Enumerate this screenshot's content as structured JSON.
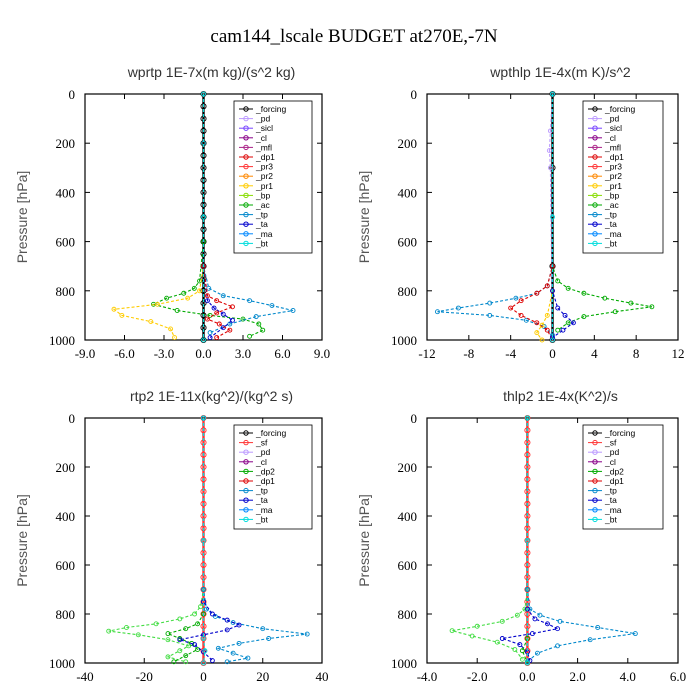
{
  "figure_title": "cam144_lscale  BUDGET at270E,-7N",
  "y_axis_label": "Pressure  [hPa]",
  "chart_data": [
    {
      "type": "line",
      "title": "wprtp   1E-7x(m kg)/(s^2 kg)",
      "ylabel": "Pressure  [hPa]",
      "xlim": [
        -9,
        9
      ],
      "ylim": [
        1000,
        0
      ],
      "xticks": [
        -9,
        -6,
        -3,
        0,
        3,
        6,
        9
      ],
      "xtick_labels": [
        "-9.0",
        "-6.0",
        "-3.0",
        "0.0",
        "3.0",
        "6.0",
        "9.0"
      ],
      "yticks": [
        0,
        200,
        400,
        600,
        800,
        1000
      ],
      "ytick_labels": [
        "0",
        "200",
        "400",
        "600",
        "800",
        "1000"
      ],
      "legend": [
        "_forcing",
        "_pd",
        "_sicl",
        "_cl",
        "_mfl",
        "_dp1",
        "_pr3",
        "_pr2",
        "_pr1",
        "_bp",
        "_ac",
        "_tp",
        "_ta",
        "_ma",
        "_bt"
      ],
      "series": [
        {
          "name": "_forcing",
          "color": "#000000",
          "x": [
            0,
            0,
            0,
            0,
            0,
            0,
            0,
            0,
            0,
            0,
            0,
            0,
            0,
            0,
            0,
            0,
            0,
            0,
            0,
            0,
            0
          ],
          "y": [
            0,
            50,
            100,
            150,
            200,
            250,
            300,
            350,
            400,
            450,
            500,
            550,
            600,
            650,
            700,
            750,
            800,
            850,
            900,
            950,
            1000
          ]
        },
        {
          "name": "_ac",
          "color": "#00aa00",
          "x": [
            0,
            0,
            0,
            -0.3,
            -0.7,
            -1.5,
            -2.8,
            -3.8,
            -2.0,
            0.5,
            3.0,
            4.2,
            4.5,
            3.5
          ],
          "y": [
            0,
            200,
            600,
            760,
            790,
            810,
            830,
            855,
            880,
            900,
            915,
            935,
            960,
            985
          ]
        },
        {
          "name": "_pr1",
          "color": "#ffcc00",
          "x": [
            0,
            0,
            0,
            -0.3,
            -1.2,
            -3.5,
            -6.8,
            -6.2,
            -4.0,
            -2.5,
            -2.2
          ],
          "y": [
            0,
            200,
            700,
            800,
            830,
            855,
            875,
            900,
            925,
            955,
            990
          ]
        },
        {
          "name": "_tp",
          "color": "#0088cc",
          "x": [
            0,
            0,
            0,
            0.4,
            1.5,
            3.5,
            5.2,
            6.8,
            4.0,
            2.0,
            0.5
          ],
          "y": [
            0,
            200,
            700,
            790,
            820,
            840,
            860,
            880,
            905,
            935,
            970
          ]
        },
        {
          "name": "_ta",
          "color": "#0000cc",
          "x": [
            0,
            0,
            0.3,
            0.8,
            1.5,
            2.2,
            1.5,
            0.5
          ],
          "y": [
            0,
            700,
            840,
            870,
            895,
            920,
            950,
            990
          ]
        },
        {
          "name": "_dp1",
          "color": "#dd0000",
          "x": [
            0,
            0,
            0.3,
            1.0,
            2.2,
            1.0,
            0.3,
            1.2,
            2.0,
            1.0
          ],
          "y": [
            0,
            700,
            820,
            840,
            865,
            890,
            915,
            935,
            960,
            990
          ]
        },
        {
          "name": "_bt",
          "color": "#00dddd",
          "x": [
            0,
            0,
            0
          ],
          "y": [
            0,
            500,
            1000
          ]
        }
      ]
    },
    {
      "type": "line",
      "title": "wpthlp   1E-4x(m K)/s^2",
      "ylabel": "Pressure  [hPa]",
      "xlim": [
        -12,
        12
      ],
      "ylim": [
        1000,
        0
      ],
      "xticks": [
        -12,
        -8,
        -4,
        0,
        4,
        8,
        12
      ],
      "xtick_labels": [
        "-12",
        "-8",
        "-4",
        "0",
        "4",
        "8",
        "12"
      ],
      "yticks": [
        0,
        200,
        400,
        600,
        800,
        1000
      ],
      "ytick_labels": [
        "0",
        "200",
        "400",
        "600",
        "800",
        "1000"
      ],
      "legend": [
        "_forcing",
        "_pd",
        "_sicl",
        "_cl",
        "_mfl",
        "_dp1",
        "_pr3",
        "_pr2",
        "_pr1",
        "_bp",
        "_ac",
        "_tp",
        "_ta",
        "_ma",
        "_bt"
      ],
      "series": [
        {
          "name": "_forcing",
          "color": "#000000",
          "x": [
            0,
            0,
            0,
            0
          ],
          "y": [
            0,
            300,
            700,
            1000
          ]
        },
        {
          "name": "_pd",
          "color": "#bb99ff",
          "x": [
            0,
            -0.2,
            -0.3,
            -0.2,
            0
          ],
          "y": [
            0,
            150,
            230,
            300,
            1000
          ]
        },
        {
          "name": "_ac",
          "color": "#00aa00",
          "x": [
            0,
            0,
            0.5,
            1.5,
            3.0,
            5.0,
            7.5,
            9.5,
            6.0,
            3.0,
            1.5,
            0.5
          ],
          "y": [
            0,
            700,
            760,
            790,
            810,
            830,
            850,
            865,
            885,
            905,
            930,
            960
          ]
        },
        {
          "name": "_tp",
          "color": "#0088cc",
          "x": [
            0,
            0,
            -0.5,
            -1.5,
            -3.5,
            -6.0,
            -9.0,
            -11.0,
            -6.0,
            -2.5,
            -0.8,
            0
          ],
          "y": [
            0,
            700,
            780,
            810,
            830,
            850,
            870,
            885,
            900,
            920,
            945,
            980
          ]
        },
        {
          "name": "_dp1",
          "color": "#dd0000",
          "x": [
            0,
            0,
            -0.5,
            -1.5,
            -3.0,
            -4.0,
            -3.0,
            -1.5,
            -0.5,
            0
          ],
          "y": [
            0,
            700,
            780,
            810,
            840,
            870,
            900,
            930,
            960,
            1000
          ]
        },
        {
          "name": "_pr1",
          "color": "#ffcc00",
          "x": [
            0,
            0,
            -0.5,
            -1.0,
            -1.5,
            -1.0
          ],
          "y": [
            0,
            800,
            900,
            940,
            970,
            1000
          ]
        },
        {
          "name": "_ta",
          "color": "#0000cc",
          "x": [
            0,
            0,
            0.5,
            1.2,
            2.0,
            1.0,
            0
          ],
          "y": [
            0,
            800,
            870,
            900,
            930,
            960,
            990
          ]
        },
        {
          "name": "_bt",
          "color": "#00dddd",
          "x": [
            0,
            0,
            0
          ],
          "y": [
            0,
            500,
            1000
          ]
        }
      ]
    },
    {
      "type": "line",
      "title": "rtp2   1E-11x(kg^2)/(kg^2 s)",
      "ylabel": "Pressure  [hPa]",
      "xlim": [
        -40,
        40
      ],
      "ylim": [
        1000,
        0
      ],
      "xticks": [
        -40,
        -20,
        0,
        20,
        40
      ],
      "xtick_labels": [
        "-40",
        "-20",
        "0",
        "20",
        "40"
      ],
      "yticks": [
        0,
        200,
        400,
        600,
        800,
        1000
      ],
      "ytick_labels": [
        "0",
        "200",
        "400",
        "600",
        "800",
        "1000"
      ],
      "legend": [
        "_forcing",
        "_sf",
        "_pd",
        "_cl",
        "_dp2",
        "_dp1",
        "_tp",
        "_ta",
        "_ma",
        "_bt"
      ],
      "series": [
        {
          "name": "_forcing",
          "color": "#ff3333",
          "x": [
            0,
            0,
            0,
            0,
            0,
            0,
            0,
            0,
            0,
            0,
            0,
            0,
            0,
            0,
            0,
            0,
            0,
            0,
            0,
            0,
            0
          ],
          "y": [
            0,
            50,
            100,
            150,
            200,
            250,
            300,
            350,
            400,
            450,
            500,
            550,
            600,
            650,
            700,
            750,
            800,
            850,
            900,
            950,
            1000
          ]
        },
        {
          "name": "_dp1",
          "color": "#44dd44",
          "x": [
            0,
            0,
            -1,
            -3,
            -8,
            -16,
            -26,
            -32,
            -22,
            -12,
            -5,
            -8,
            -12,
            -6
          ],
          "y": [
            0,
            700,
            770,
            800,
            820,
            840,
            855,
            870,
            885,
            905,
            930,
            950,
            975,
            995
          ]
        },
        {
          "name": "_dp2",
          "color": "#00aa00",
          "x": [
            0,
            0,
            -2,
            -6,
            -12,
            -8,
            -4,
            -2,
            -6,
            -10
          ],
          "y": [
            0,
            800,
            840,
            860,
            880,
            900,
            920,
            945,
            970,
            995
          ]
        },
        {
          "name": "_tp",
          "color": "#0088cc",
          "x": [
            0,
            0,
            1,
            4,
            10,
            20,
            35,
            22,
            12,
            5,
            10,
            15,
            8
          ],
          "y": [
            0,
            700,
            780,
            810,
            835,
            860,
            882,
            900,
            920,
            940,
            960,
            980,
            995
          ]
        },
        {
          "name": "_ta",
          "color": "#0000cc",
          "x": [
            0,
            0,
            3,
            8,
            12,
            8,
            0,
            -8,
            -3,
            0,
            3
          ],
          "y": [
            0,
            750,
            800,
            825,
            845,
            865,
            885,
            905,
            925,
            955,
            990
          ]
        },
        {
          "name": "_bt",
          "color": "#00dddd",
          "x": [
            0,
            0,
            0,
            0.5,
            0
          ],
          "y": [
            0,
            500,
            900,
            950,
            1000
          ]
        }
      ]
    },
    {
      "type": "line",
      "title": "thlp2   1E-4x(K^2)/s",
      "ylabel": "Pressure  [hPa]",
      "xlim": [
        -4,
        6
      ],
      "ylim": [
        1000,
        0
      ],
      "xticks": [
        -4,
        -2,
        0,
        2,
        4,
        6
      ],
      "xtick_labels": [
        "-4.0",
        "-2.0",
        "0.0",
        "2.0",
        "4.0",
        "6.0"
      ],
      "yticks": [
        0,
        200,
        400,
        600,
        800,
        1000
      ],
      "ytick_labels": [
        "0",
        "200",
        "400",
        "600",
        "800",
        "1000"
      ],
      "legend": [
        "_forcing",
        "_sf",
        "_pd",
        "_cl",
        "_dp2",
        "_dp1",
        "_tp",
        "_ta",
        "_ma",
        "_bt"
      ],
      "series": [
        {
          "name": "_forcing",
          "color": "#ff3333",
          "x": [
            0,
            0,
            0,
            0,
            0,
            0,
            0,
            0,
            0,
            0,
            0,
            0,
            0,
            0,
            0,
            0,
            0,
            0,
            0,
            0,
            0
          ],
          "y": [
            0,
            50,
            100,
            150,
            200,
            250,
            300,
            350,
            400,
            450,
            500,
            550,
            600,
            650,
            700,
            750,
            800,
            850,
            900,
            950,
            1000
          ]
        },
        {
          "name": "_dp1",
          "color": "#44dd44",
          "x": [
            0,
            0,
            -0.1,
            -0.4,
            -1.0,
            -2.0,
            -3.0,
            -2.2,
            -1.2,
            -0.5,
            -0.2
          ],
          "y": [
            0,
            700,
            780,
            805,
            830,
            850,
            868,
            890,
            915,
            945,
            985
          ]
        },
        {
          "name": "_tp",
          "color": "#0088cc",
          "x": [
            0,
            0,
            0.1,
            0.5,
            1.3,
            2.8,
            4.3,
            2.5,
            1.2,
            0.4,
            0
          ],
          "y": [
            0,
            700,
            780,
            805,
            830,
            855,
            880,
            905,
            930,
            960,
            995
          ]
        },
        {
          "name": "_ta",
          "color": "#0000cc",
          "x": [
            0,
            0,
            0.3,
            0.8,
            1.2,
            0.2,
            -1.0,
            -0.3,
            0,
            0.1
          ],
          "y": [
            0,
            780,
            820,
            840,
            860,
            880,
            900,
            925,
            955,
            990
          ]
        },
        {
          "name": "_dp2",
          "color": "#00aa00",
          "x": [
            0,
            0,
            -0.2,
            0
          ],
          "y": [
            0,
            900,
            950,
            1000
          ]
        },
        {
          "name": "_bt",
          "color": "#00dddd",
          "x": [
            0,
            0,
            0
          ],
          "y": [
            0,
            500,
            1000
          ]
        }
      ]
    }
  ]
}
